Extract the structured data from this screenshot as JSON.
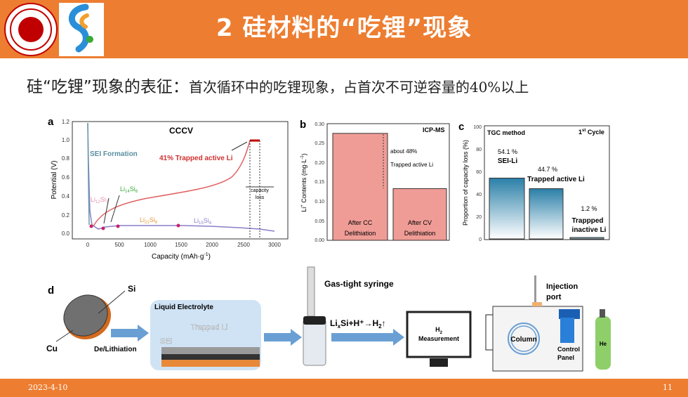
{
  "slide": {
    "title": "2 硅材料的“吃锂”现象",
    "subtitle_lead": "硅“吃锂”现象的表征：",
    "subtitle_rest": "首次循环中的吃锂现象，占首次不可逆容量的40%以上",
    "footer_date": "2023-4-10",
    "footer_page": "11"
  },
  "colors": {
    "accent": "#ed7d31",
    "voltage": "#e06060",
    "bar": "#f09c96",
    "teal": "#2a7fa8"
  },
  "panel_a": {
    "letter": "a",
    "title": "CCCV",
    "xlabel": "Capacity (mAh·g",
    "xlabel_sup": "-1",
    "xlabel_end": ")",
    "ylabel": "Potential (V)",
    "x_ticks": [
      "0",
      "500",
      "1000",
      "1500",
      "2000",
      "2500",
      "3000"
    ],
    "y_ticks": [
      "0.0",
      "0.2",
      "0.4",
      "0.6",
      "0.8",
      "1.0",
      "1.2"
    ],
    "sei_label": "SEI Formation",
    "trapped_label": "41% Trapped active Li",
    "loss_label1": "capacity",
    "loss_label2": "loss",
    "phases": [
      {
        "main": "Li",
        "sub1": "12",
        "mid": "Si",
        "sub2": "7",
        "color": "#e58fb0"
      },
      {
        "main": "Li",
        "sub1": "14",
        "mid": "Si",
        "sub2": "6",
        "color": "#3aaa35"
      },
      {
        "main": "Li",
        "sub1": "21",
        "mid": "Si",
        "sub2": "8",
        "color": "#e59a3a"
      },
      {
        "main": "Li",
        "sub1": "15",
        "mid": "Si",
        "sub2": "4",
        "color": "#8a7ec8"
      }
    ]
  },
  "panel_b": {
    "letter": "b",
    "title": "ICP-MS",
    "ylabel": "Li",
    "y_ticks": [
      "0.00",
      "0.05",
      "0.10",
      "0.15",
      "0.20",
      "0.25",
      "0.30"
    ],
    "bar1_line1": "After CC",
    "bar1_line2": "Delithiation",
    "bar2_line1": "After CV",
    "bar2_line2": "Delithiation",
    "annot1": "about 48%",
    "annot2": "Trapped active Li"
  },
  "panel_c": {
    "letter": "c",
    "title": "TGC method",
    "cycle": "1",
    "cycle_sup": "st",
    "cycle_end": " Cycle",
    "ylabel": "Proportion of capacity loss (%)",
    "y_ticks": [
      "0",
      "20",
      "40",
      "60",
      "80",
      "100"
    ],
    "bar1_pct": "54.1 %",
    "bar1_label": "SEI-Li",
    "bar2_pct": "44.7 %",
    "bar2_label": "Trapped active Li",
    "bar3_pct": "1.2 %",
    "bar3_label1": "Trappped",
    "bar3_label2": "inactive Li"
  },
  "panel_d": {
    "letter": "d",
    "si": "Si",
    "cu": "Cu",
    "delith": "De/Lithiation",
    "liquid": "Liquid Electrolyte",
    "trapped": "Trapped Li",
    "sei": "SEI",
    "syringe": "Gas-tight syringe",
    "reaction": "Li",
    "reaction_sub": "x",
    "reaction_rest": "Si+H⁺→H",
    "reaction_sub2": "2",
    "reaction_arrow": "↑",
    "h2": "H",
    "h2_sub": "2",
    "measurement": "Measurement",
    "column": "Column",
    "injection1": "Injection",
    "injection2": "port",
    "control1": "Control",
    "control2": "Panel",
    "he": "He"
  },
  "chart_data": [
    {
      "type": "line",
      "title": "CCCV",
      "xlabel": "Capacity (mAh·g-1)",
      "ylabel": "Potential (V)",
      "xlim": [
        -200,
        3100
      ],
      "ylim": [
        -0.05,
        1.2
      ],
      "annotations": [
        "SEI Formation",
        "41% Trapped active Li",
        "capacity loss",
        "Li12Si7",
        "Li14Si6",
        "Li21Si8",
        "Li15Si4"
      ]
    },
    {
      "type": "bar",
      "title": "ICP-MS",
      "categories": [
        "After CC Delithiation",
        "After CV Delithiation"
      ],
      "values": [
        0.275,
        0.133
      ],
      "ylim": [
        0,
        0.3
      ],
      "annotation": "about 48% Trapped active Li"
    },
    {
      "type": "bar",
      "title": "TGC method",
      "categories": [
        "SEI-Li",
        "Trapped active Li",
        "Trappped inactive Li"
      ],
      "values": [
        54.1,
        44.7,
        1.2
      ],
      "ylim": [
        0,
        100
      ]
    }
  ]
}
